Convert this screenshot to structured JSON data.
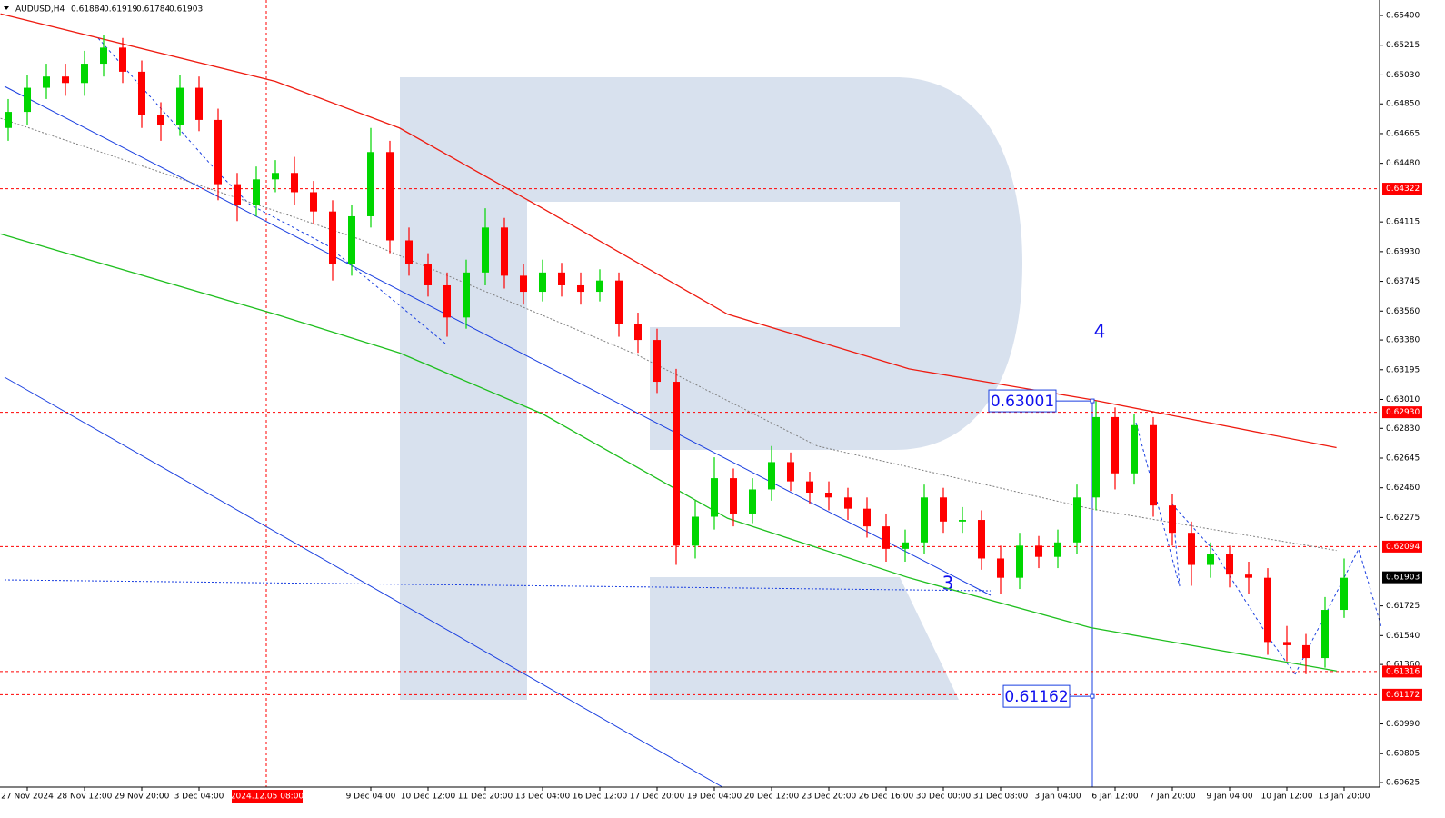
{
  "chart_data": {
    "type": "candlestick",
    "title": "AUDUSD,H4",
    "header_values": [
      0.61884,
      0.61919,
      0.61784,
      0.61903
    ],
    "categories": [
      null,
      "27 Nov 2024",
      null,
      null,
      "28 Nov 12:00",
      null,
      null,
      "29 Nov 20:00",
      null,
      null,
      "3 Dec 04:00",
      null,
      null,
      null,
      null,
      null,
      null,
      null,
      null,
      "9 Dec 04:00",
      null,
      null,
      "10 Dec 12:00",
      null,
      null,
      "11 Dec 20:00",
      null,
      null,
      "13 Dec 04:00",
      null,
      null,
      "16 Dec 12:00",
      null,
      null,
      "17 Dec 20:00",
      null,
      null,
      "19 Dec 04:00",
      null,
      null,
      "20 Dec 12:00",
      null,
      null,
      "23 Dec 20:00",
      null,
      null,
      "26 Dec 16:00",
      null,
      null,
      "30 Dec 00:00",
      null,
      null,
      "31 Dec 08:00",
      null,
      null,
      "3 Jan 04:00",
      null,
      null,
      "6 Jan 12:00",
      null,
      null,
      "7 Jan 20:00",
      null,
      null,
      "9 Jan 04:00",
      null,
      null,
      "10 Jan 12:00",
      null,
      null,
      "13 Jan 20:00"
    ],
    "open": [
      0.647,
      0.648,
      0.6495,
      0.6502,
      0.6498,
      0.651,
      0.652,
      0.6505,
      0.6478,
      0.6472,
      0.6495,
      0.6475,
      0.6435,
      0.6422,
      0.6438,
      0.6442,
      0.643,
      0.6418,
      0.6385,
      0.6415,
      0.6455,
      0.64,
      0.6385,
      0.6372,
      0.6352,
      0.638,
      0.6408,
      0.6378,
      0.6368,
      0.638,
      0.6372,
      0.6368,
      0.6375,
      0.6348,
      0.6338,
      0.6312,
      0.621,
      0.6228,
      0.6252,
      0.623,
      0.6245,
      0.6262,
      0.625,
      0.6243,
      0.624,
      0.6233,
      0.6222,
      0.6208,
      0.6212,
      0.624,
      0.6225,
      0.6226,
      0.6202,
      0.619,
      0.621,
      0.6203,
      0.6212,
      0.624,
      0.629,
      0.6255,
      0.6285,
      0.6235,
      0.6218,
      0.6198,
      0.6205,
      0.6192,
      0.619,
      0.615,
      0.6148,
      0.614,
      0.617
    ],
    "high": [
      0.6488,
      0.6503,
      0.651,
      0.651,
      0.6518,
      0.6528,
      0.6526,
      0.6512,
      0.6486,
      0.6503,
      0.6502,
      0.6482,
      0.6442,
      0.6446,
      0.645,
      0.6452,
      0.6437,
      0.6425,
      0.6422,
      0.647,
      0.6462,
      0.6408,
      0.6392,
      0.638,
      0.6388,
      0.642,
      0.6414,
      0.6385,
      0.6388,
      0.6386,
      0.638,
      0.6382,
      0.638,
      0.6355,
      0.6345,
      0.632,
      0.6238,
      0.6265,
      0.6258,
      0.6252,
      0.6272,
      0.6268,
      0.6256,
      0.625,
      0.6246,
      0.624,
      0.623,
      0.622,
      0.6248,
      0.6246,
      0.6234,
      0.6232,
      0.621,
      0.6218,
      0.6216,
      0.622,
      0.6248,
      0.63,
      0.6296,
      0.6292,
      0.629,
      0.6242,
      0.6225,
      0.6212,
      0.621,
      0.62,
      0.6196,
      0.616,
      0.6155,
      0.6178,
      0.6202
    ],
    "low": [
      0.6462,
      0.6472,
      0.6488,
      0.649,
      0.649,
      0.6502,
      0.6498,
      0.647,
      0.6462,
      0.6465,
      0.6468,
      0.6425,
      0.6412,
      0.6415,
      0.643,
      0.6422,
      0.641,
      0.6375,
      0.6378,
      0.6408,
      0.6392,
      0.6378,
      0.6365,
      0.634,
      0.6345,
      0.6372,
      0.637,
      0.636,
      0.6362,
      0.6365,
      0.636,
      0.6362,
      0.634,
      0.633,
      0.6305,
      0.6198,
      0.6202,
      0.622,
      0.6222,
      0.6224,
      0.6238,
      0.6244,
      0.6236,
      0.6232,
      0.6226,
      0.6215,
      0.62,
      0.62,
      0.6205,
      0.6218,
      0.6218,
      0.6195,
      0.618,
      0.6183,
      0.6196,
      0.6196,
      0.6205,
      0.6232,
      0.6245,
      0.6248,
      0.6228,
      0.621,
      0.6185,
      0.619,
      0.6184,
      0.618,
      0.6142,
      0.6138,
      0.613,
      0.6134,
      0.6165
    ],
    "close": [
      0.648,
      0.6495,
      0.6502,
      0.6498,
      0.651,
      0.652,
      0.6505,
      0.6478,
      0.6472,
      0.6495,
      0.6475,
      0.6435,
      0.6422,
      0.6438,
      0.6442,
      0.643,
      0.6418,
      0.6385,
      0.6415,
      0.6455,
      0.64,
      0.6385,
      0.6372,
      0.6352,
      0.638,
      0.6408,
      0.6378,
      0.6368,
      0.638,
      0.6372,
      0.6368,
      0.6375,
      0.6348,
      0.6338,
      0.6312,
      0.621,
      0.6228,
      0.6252,
      0.623,
      0.6245,
      0.6262,
      0.625,
      0.6243,
      0.624,
      0.6233,
      0.6222,
      0.6208,
      0.6212,
      0.624,
      0.6225,
      0.6226,
      0.6202,
      0.619,
      0.621,
      0.6203,
      0.6212,
      0.624,
      0.629,
      0.6255,
      0.6285,
      0.6235,
      0.6218,
      0.6198,
      0.6205,
      0.6192,
      0.619,
      0.615,
      0.6148,
      0.614,
      0.617,
      0.619
    ],
    "colors": {
      "up": "#00d600",
      "down": "#ff0000"
    },
    "ylim": [
      0.60597,
      0.65485
    ],
    "yticks": [
      {
        "value": 0.654,
        "label": "0.65400"
      },
      0.65215,
      {
        "value": 0.6503,
        "label": "0.65030"
      },
      {
        "value": 0.6485,
        "label": "0.64850"
      },
      0.64665,
      {
        "value": 0.6448,
        "label": "0.64480"
      },
      0.64115,
      {
        "value": 0.6393,
        "label": "0.63930"
      },
      0.63745,
      {
        "value": 0.6356,
        "label": "0.63560"
      },
      {
        "value": 0.6338,
        "label": "0.63380"
      },
      0.63195,
      {
        "value": 0.6301,
        "label": "0.63010"
      },
      {
        "value": 0.6283,
        "label": "0.62830"
      },
      0.62645,
      {
        "value": 0.6246,
        "label": "0.62460"
      },
      0.62275,
      0.61725,
      {
        "value": 0.6154,
        "label": "0.61540"
      },
      {
        "value": 0.6136,
        "label": "0.61360"
      },
      {
        "value": 0.6099,
        "label": "0.60990"
      },
      0.60805,
      0.60625
    ],
    "price_levels": [
      0.64322,
      {
        "value": 0.6293,
        "label": "0.62930"
      },
      0.62094,
      0.61316,
      0.61172
    ],
    "level_color": "#ff0000",
    "current_price": 0.61903,
    "overlays": [
      {
        "color": "#ee1b10",
        "style": "solid",
        "x": [
          -0.4,
          14,
          20.5,
          28,
          37.7,
          47.2,
          56.7,
          69.6
        ],
        "values": [
          0.6541,
          0.6499,
          0.647,
          0.642,
          0.6354,
          0.632,
          0.6301,
          0.6271
        ]
      },
      {
        "color": "#1fbf1f",
        "style": "solid",
        "x": [
          -0.4,
          14,
          20.5,
          28,
          37.7,
          47.2,
          56.7,
          69.6
        ],
        "values": [
          0.6404,
          0.6354,
          0.633,
          0.6292,
          0.6227,
          0.619,
          0.6159,
          0.6132
        ]
      },
      {
        "color": "#808080",
        "style": "dotted",
        "x": [
          -0.4,
          18.6,
          32.9,
          42.4,
          56.7,
          69.6
        ],
        "values": [
          0.6476,
          0.64,
          0.6329,
          0.6272,
          0.6233,
          0.6207
        ]
      }
    ],
    "crosshair_label": "2024.12.05 08:00",
    "wave_labels": [
      "4",
      "3"
    ],
    "target_labels": [
      0.63001,
      0.61162
    ]
  }
}
